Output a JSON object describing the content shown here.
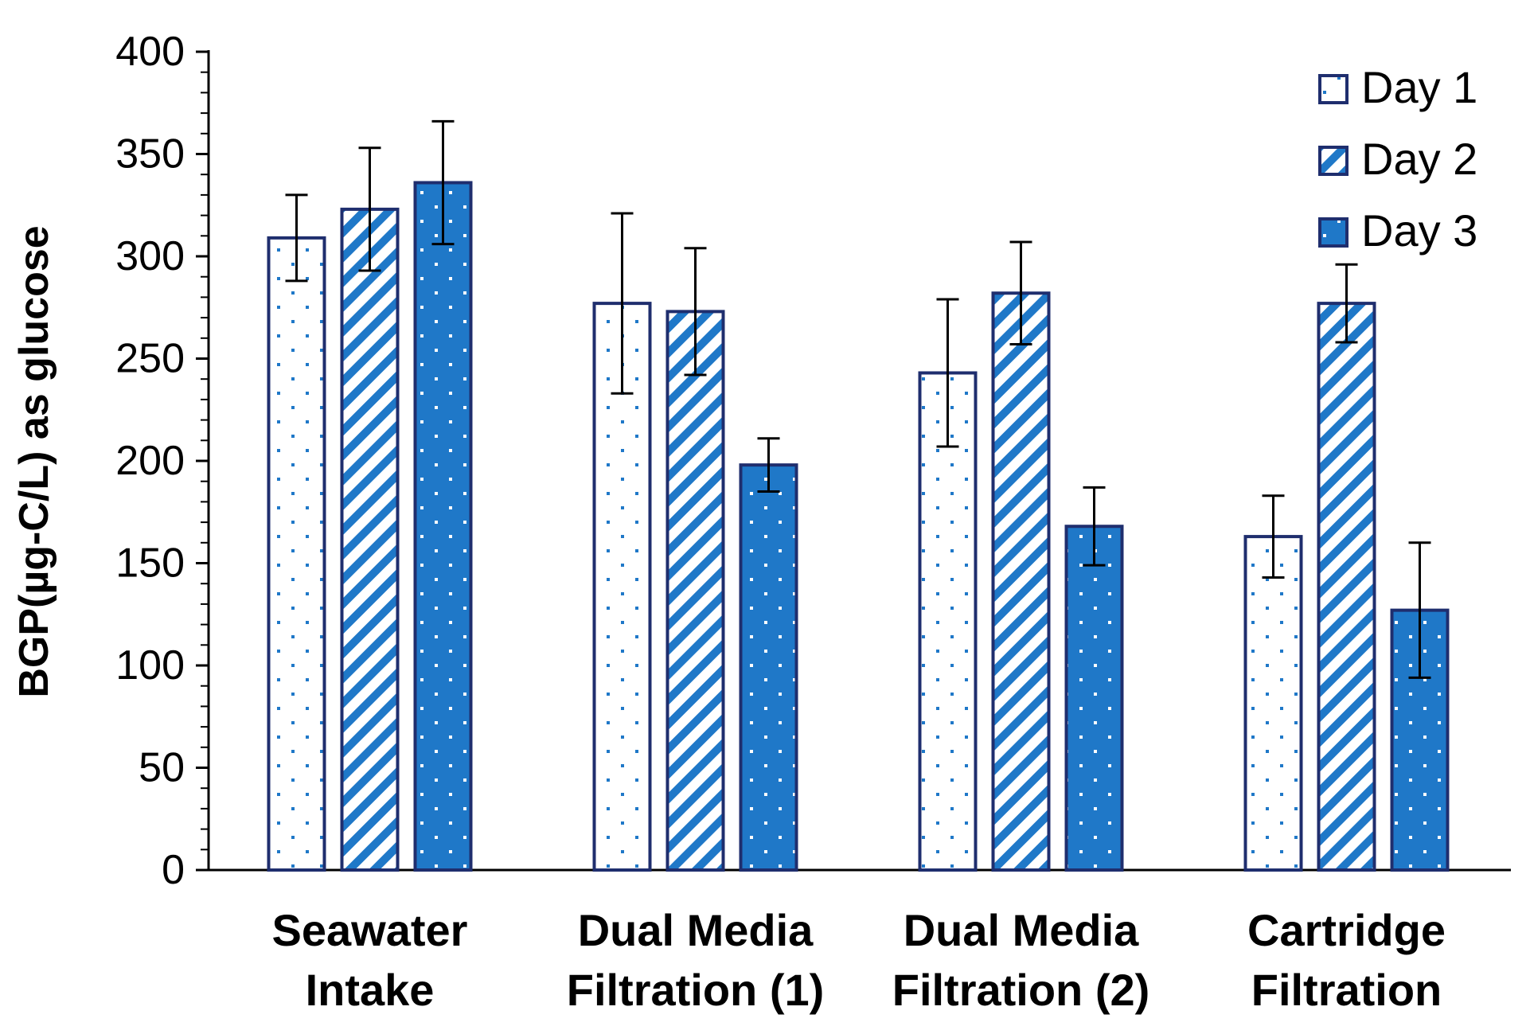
{
  "chart_data": {
    "type": "bar",
    "title": "",
    "xlabel": "",
    "ylabel": "BGP(µg-C/L) as glucose",
    "ylim": [
      0,
      400
    ],
    "yticks": [
      0,
      50,
      100,
      150,
      200,
      250,
      300,
      350,
      400
    ],
    "categories": [
      [
        "Seawater",
        "Intake"
      ],
      [
        "Dual Media",
        "Filtration (1)"
      ],
      [
        "Dual Media",
        "Filtration (2)"
      ],
      [
        "Cartridge",
        "Filtration"
      ]
    ],
    "series": [
      {
        "name": "Day 1",
        "pattern": "dots-light",
        "values": [
          309,
          277,
          243,
          163
        ],
        "errors": [
          21,
          44,
          36,
          20
        ]
      },
      {
        "name": "Day 2",
        "pattern": "diagonal",
        "values": [
          323,
          273,
          282,
          277
        ],
        "errors": [
          30,
          31,
          25,
          19
        ]
      },
      {
        "name": "Day 3",
        "pattern": "dots-dark",
        "values": [
          336,
          198,
          168,
          127
        ],
        "errors": [
          30,
          13,
          19,
          33
        ]
      }
    ],
    "legend_position": "top-right",
    "colors": {
      "outline": "#1f2e6e",
      "fill": "#1f78c8",
      "light": "#ffffff",
      "axis": "#000000"
    }
  }
}
